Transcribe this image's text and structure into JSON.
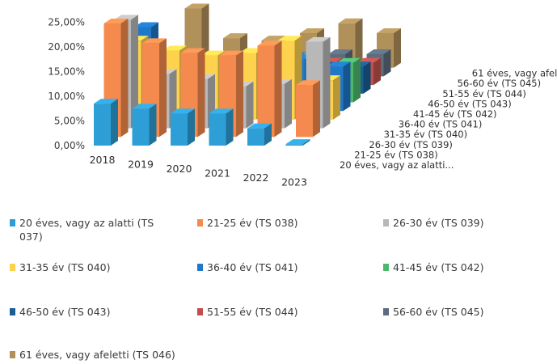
{
  "chart_data": {
    "type": "bar",
    "categories": [
      "2018",
      "2019",
      "2020",
      "2021",
      "2022",
      "2023"
    ],
    "ylim": [
      0,
      25
    ],
    "yticks": [
      "0,00%",
      "5,00%",
      "10,00%",
      "15,00%",
      "20,00%",
      "25,00%"
    ],
    "series": [
      {
        "name": "20 éves, vagy az alatti...",
        "legend": "20 éves, vagy az alatti (TS 037)",
        "color": "#2e9fd6",
        "values": [
          8.5,
          7.5,
          6.5,
          6.5,
          3.5,
          0.3
        ]
      },
      {
        "name": "21-25 év (TS 038)",
        "legend": "21-25 év (TS 038)",
        "color": "#f48a4d",
        "values": [
          23,
          19,
          17,
          16.5,
          18.5,
          10.5
        ]
      },
      {
        "name": "26-30 év (TS 039)",
        "legend": "26-30 év (TS 039)",
        "color": "#b8b8b8",
        "values": [
          22,
          11,
          10,
          8.5,
          9,
          17.5
        ]
      },
      {
        "name": "31-35 év (TS 040)",
        "legend": "31-35 év (TS 040)",
        "color": "#ffd24d",
        "values": [
          16,
          14,
          13,
          13.5,
          16,
          8
        ]
      },
      {
        "name": "36-40 év (TS 041)",
        "legend": "36-40 év (TS 041)",
        "color": "#1f78c8",
        "values": [
          17,
          9,
          9,
          8,
          10.5,
          9
        ]
      },
      {
        "name": "41-45 év (TS 042)",
        "legend": "41-45 év (TS 042)",
        "color": "#4cb86c",
        "values": [
          8,
          7,
          7,
          7,
          9,
          8
        ]
      },
      {
        "name": "46-50 év (TS 043)",
        "legend": "46-50 év (TS 043)",
        "color": "#1b5e96",
        "values": [
          5,
          5,
          5,
          5,
          5.5,
          5.5
        ]
      },
      {
        "name": "51-55 év (TS 044)",
        "legend": "51-55 év (TS 044)",
        "color": "#c0504d",
        "values": [
          6,
          5,
          4.5,
          4.5,
          4.5,
          4.5
        ]
      },
      {
        "name": "56-60 év (TS 045)",
        "legend": "56-60 év (TS 045)",
        "color": "#5d6d7e",
        "values": [
          4,
          4,
          4,
          4,
          4.5,
          4.5
        ]
      },
      {
        "name": "61 éves, vagy afeletti (TS 046)",
        "legend": "61 éves, vagy afeletti (TS 046)",
        "color": "#b0915a",
        "values": [
          12,
          6,
          5.5,
          7,
          9,
          7
        ]
      }
    ]
  }
}
